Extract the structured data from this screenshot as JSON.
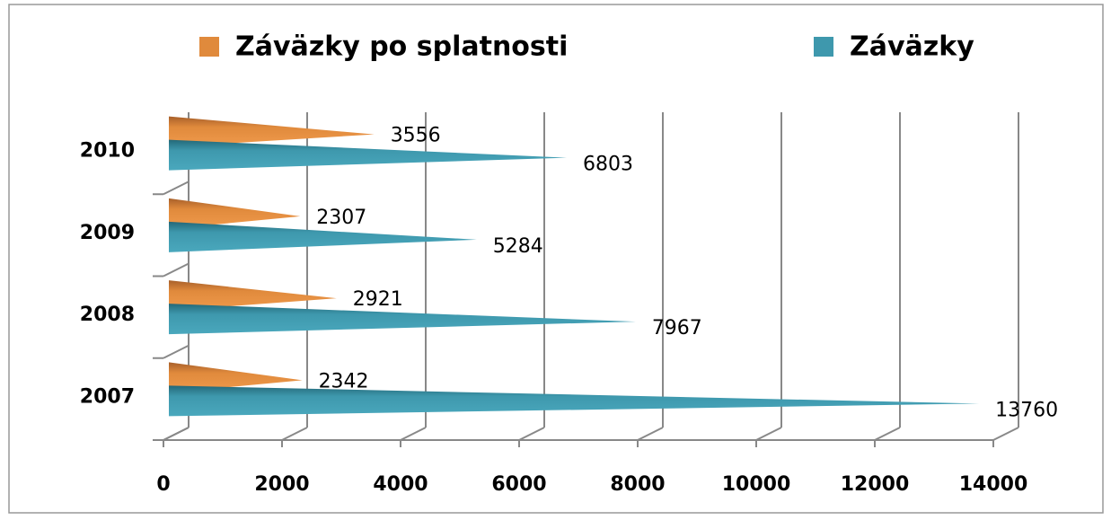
{
  "chart_data": {
    "type": "bar",
    "orientation": "horizontal",
    "categories": [
      "2007",
      "2008",
      "2009",
      "2010"
    ],
    "series": [
      {
        "name": "Záväzky po splatnosti",
        "color": "#e08a3c",
        "values": [
          2342,
          2921,
          2307,
          3556
        ]
      },
      {
        "name": "Záväzky",
        "color": "#3e98ad",
        "values": [
          13760,
          7967,
          5284,
          6803
        ]
      }
    ],
    "xlim": [
      0,
      14000
    ],
    "xticks": [
      0,
      2000,
      4000,
      6000,
      8000,
      10000,
      12000,
      14000
    ],
    "grid": true,
    "legend": "top"
  }
}
